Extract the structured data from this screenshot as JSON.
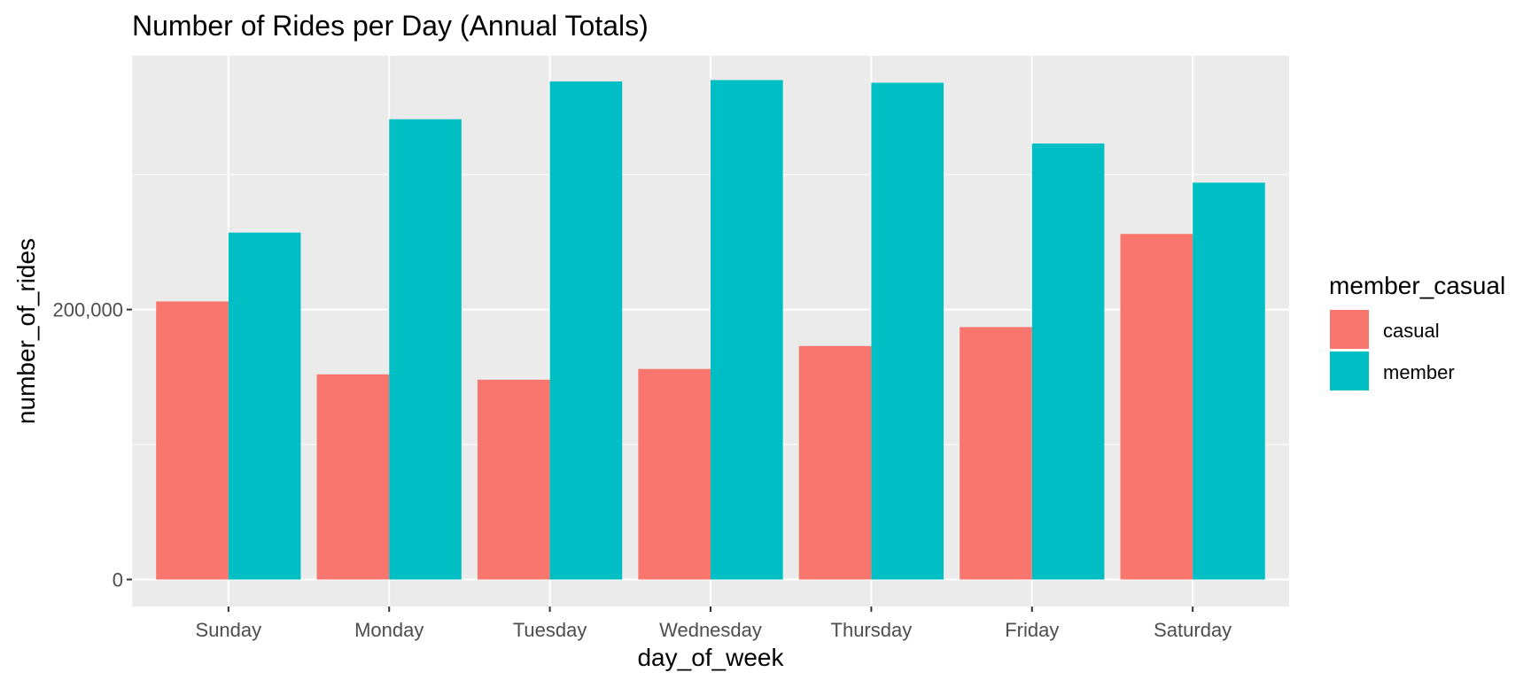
{
  "chart_data": {
    "type": "bar",
    "title": "Number of Rides per Day (Annual Totals)",
    "xlabel": "day_of_week",
    "ylabel": "number_of_rides",
    "categories": [
      "Sunday",
      "Monday",
      "Tuesday",
      "Wednesday",
      "Thursday",
      "Friday",
      "Saturday"
    ],
    "series": [
      {
        "name": "casual",
        "color": "#F8766D",
        "values": [
          206000,
          152000,
          148000,
          156000,
          173000,
          187000,
          256000
        ]
      },
      {
        "name": "member",
        "color": "#00BFC4",
        "values": [
          257000,
          341000,
          369000,
          370000,
          368000,
          323000,
          294000
        ]
      }
    ],
    "ylim": [
      -20000,
      388000
    ],
    "yticks": [
      {
        "value": 0,
        "label": "0"
      },
      {
        "value": 200000,
        "label": "200,000"
      }
    ],
    "y_minor_ticks": [
      100000,
      300000
    ],
    "grid": true,
    "legend": {
      "title": "member_casual",
      "position": "right"
    },
    "panel_background": "#EBEBEB",
    "grid_color": "#FFFFFF"
  }
}
